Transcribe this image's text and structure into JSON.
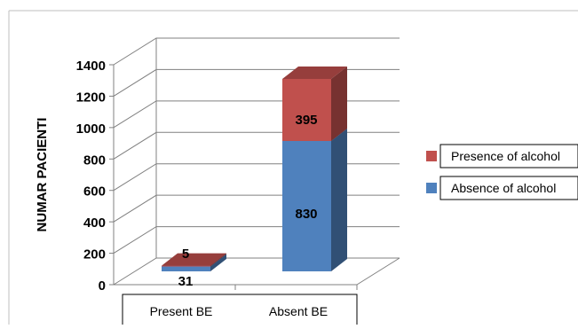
{
  "chart_data": {
    "type": "bar",
    "stacked": true,
    "three_d": true,
    "categories": [
      "Present BE",
      "Absent BE"
    ],
    "series": [
      {
        "name": "Absence of alcohol",
        "values": [
          31,
          830
        ],
        "color": "#4f81bd"
      },
      {
        "name": "Presence of alcohol",
        "values": [
          5,
          395
        ],
        "color": "#c0504d"
      }
    ],
    "data_labels": [
      [
        "31",
        "830"
      ],
      [
        "5",
        "395"
      ]
    ],
    "ylabel": "NUMAR PACIENTI",
    "ylim": [
      0,
      1400
    ],
    "yticks": [
      0,
      200,
      400,
      600,
      800,
      1000,
      1200,
      1400
    ],
    "ytick_labels": [
      "0",
      "200",
      "400",
      "600",
      "800",
      "1000",
      "1200",
      "1400"
    ],
    "grid": true,
    "legend_position": "right",
    "legend": [
      {
        "label": "Presence of alcohol",
        "color": "#c0504d"
      },
      {
        "label": "Absence of alcohol",
        "color": "#4f81bd"
      }
    ]
  }
}
